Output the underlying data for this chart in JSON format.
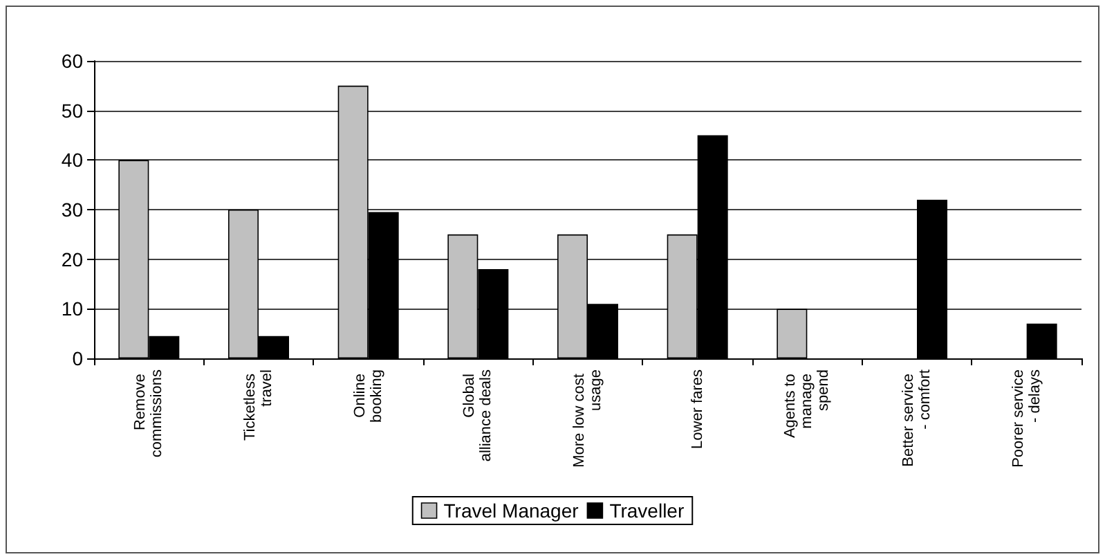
{
  "chart_data": {
    "type": "bar",
    "categories": [
      "Remove commissions",
      "Ticketless travel",
      "Online booking",
      "Global alliance deals",
      "More low cost usage",
      "Lower fares",
      "Agents to manage spend",
      "Better service - comfort",
      "Poorer service - delays"
    ],
    "series": [
      {
        "name": "Travel Manager",
        "color": "#c0c0c0",
        "values": [
          40,
          30,
          55,
          25,
          25,
          25,
          10,
          null,
          null
        ]
      },
      {
        "name": "Traveller",
        "color": "#000000",
        "values": [
          4.5,
          4.5,
          29.5,
          18,
          11,
          45,
          null,
          32,
          7
        ]
      }
    ],
    "ylim": [
      0,
      60
    ],
    "yticks": [
      0,
      10,
      20,
      30,
      40,
      50,
      60
    ],
    "grid": "y",
    "legend": "bottom"
  }
}
